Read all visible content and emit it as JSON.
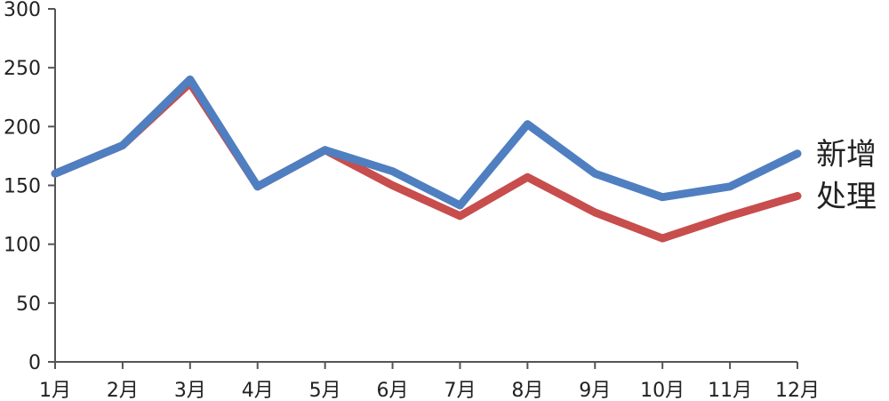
{
  "chart_data": {
    "type": "line",
    "categories": [
      "1月",
      "2月",
      "3月",
      "4月",
      "5月",
      "6月",
      "7月",
      "8月",
      "9月",
      "10月",
      "11月",
      "12月"
    ],
    "series": [
      {
        "name": "新增",
        "color": "#4f7fc0",
        "values": [
          160,
          184,
          240,
          149,
          180,
          162,
          133,
          202,
          160,
          140,
          149,
          177
        ]
      },
      {
        "name": "处理",
        "color": "#c84d4d",
        "values": [
          160,
          184,
          237,
          149,
          180,
          150,
          124,
          157,
          127,
          105,
          124,
          141
        ]
      }
    ],
    "yticks": [
      0,
      50,
      100,
      150,
      200,
      250,
      300
    ],
    "ylim": [
      0,
      300
    ],
    "grid": false,
    "legend": "end-of-line labels"
  }
}
